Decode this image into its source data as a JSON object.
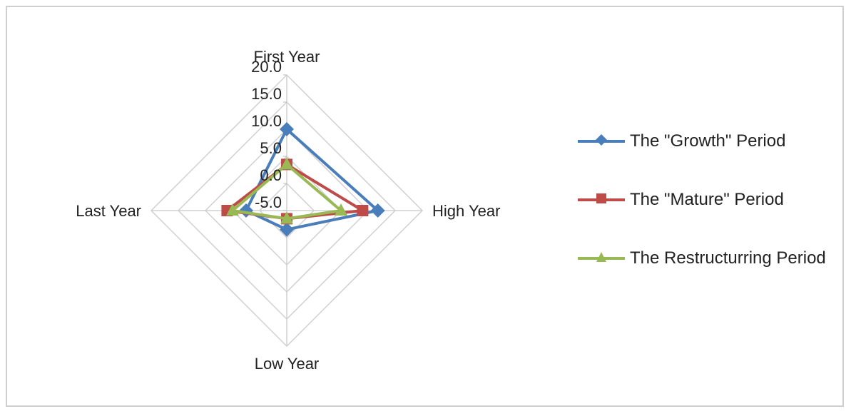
{
  "chart_data": {
    "type": "radar",
    "axes": [
      "First Year",
      "High Year",
      "Low Year",
      "Last Year"
    ],
    "tick_labels": [
      "-5.0",
      "0.0",
      "5.0",
      "10.0",
      "15.0",
      "20.0"
    ],
    "rlim": [
      -5,
      20
    ],
    "grid": true,
    "legend_position": "right",
    "series": [
      {
        "name": "The \"Growth\"  Period",
        "values": [
          10,
          11.8,
          -1.5,
          2.5
        ],
        "color": "#4a7ebb",
        "marker": "diamond"
      },
      {
        "name": "The \"Mature\"  Period",
        "values": [
          3.5,
          9.0,
          -3.5,
          6.0
        ],
        "color": "#be4b48",
        "marker": "square"
      },
      {
        "name": "The Restructurring Period",
        "values": [
          3.5,
          5.0,
          -3.5,
          5.0
        ],
        "color": "#98b954",
        "marker": "triangle"
      }
    ]
  }
}
